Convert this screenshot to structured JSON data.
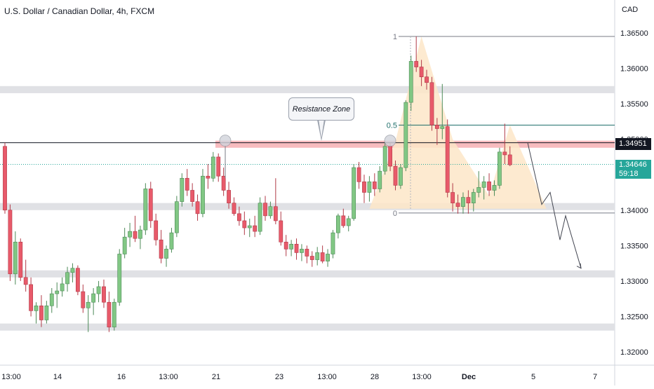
{
  "title": "U.S. Dollar / Canadian Dollar, 4h, FXCM",
  "currency_label": "CAD",
  "colors": {
    "up": "#81c784",
    "down": "#e85a6a",
    "zone_gray": "#e0e1e5",
    "resistance": "#f4a4a8",
    "pattern_fill": "#fde6c8",
    "fib_line": "#1f6f6b",
    "price_green": "#26a69a",
    "price_black": "#131722"
  },
  "price_labels": {
    "last_close_marker": "1.34951",
    "current_price": "1.34646",
    "countdown": "59:18"
  },
  "annotation": "Resistance Zone",
  "fib_labels": [
    "1",
    "0.5",
    "0"
  ],
  "chart_data": {
    "type": "candlestick",
    "title": "U.S. Dollar / Canadian Dollar, 4h, FXCM",
    "y_axis_label": "CAD",
    "ylim": [
      1.3175,
      1.368
    ],
    "y_ticks": [
      "1.36500",
      "1.36000",
      "1.35500",
      "1.35000",
      "1.34500",
      "1.34000",
      "1.33500",
      "1.33000",
      "1.32500",
      "1.32000"
    ],
    "x_ticks": [
      "13:00",
      "14",
      "16",
      "13:00",
      "21",
      "23",
      "13:00",
      "28",
      "13:00",
      "Dec",
      "5",
      "7"
    ],
    "candles": [
      [
        1.349,
        1.3495,
        1.3395,
        1.34
      ],
      [
        1.34,
        1.3408,
        1.33,
        1.331
      ],
      [
        1.331,
        1.337,
        1.3295,
        1.3355
      ],
      [
        1.3355,
        1.336,
        1.33,
        1.3305
      ],
      [
        1.3305,
        1.333,
        1.3285,
        1.3295
      ],
      [
        1.3295,
        1.3305,
        1.325,
        1.3258
      ],
      [
        1.3258,
        1.327,
        1.324,
        1.3265
      ],
      [
        1.3265,
        1.328,
        1.3235,
        1.3245
      ],
      [
        1.3245,
        1.3272,
        1.324,
        1.3265
      ],
      [
        1.3265,
        1.329,
        1.3255,
        1.3282
      ],
      [
        1.3282,
        1.3298,
        1.3262,
        1.3286
      ],
      [
        1.3286,
        1.3305,
        1.3278,
        1.3296
      ],
      [
        1.3296,
        1.332,
        1.3285,
        1.3312
      ],
      [
        1.3312,
        1.3325,
        1.3298,
        1.3318
      ],
      [
        1.3318,
        1.3322,
        1.328,
        1.3285
      ],
      [
        1.3285,
        1.3295,
        1.3255,
        1.3262
      ],
      [
        1.3262,
        1.328,
        1.3228,
        1.327
      ],
      [
        1.327,
        1.329,
        1.3252,
        1.3282
      ],
      [
        1.3282,
        1.33,
        1.327,
        1.3292
      ],
      [
        1.3292,
        1.3302,
        1.3262,
        1.327
      ],
      [
        1.327,
        1.3285,
        1.3228,
        1.3235
      ],
      [
        1.3235,
        1.3275,
        1.323,
        1.327
      ],
      [
        1.327,
        1.3345,
        1.3265,
        1.3338
      ],
      [
        1.3338,
        1.3375,
        1.3332,
        1.3362
      ],
      [
        1.3362,
        1.3382,
        1.3348,
        1.337
      ],
      [
        1.337,
        1.3392,
        1.3355,
        1.336
      ],
      [
        1.336,
        1.3378,
        1.3345,
        1.3372
      ],
      [
        1.3372,
        1.3438,
        1.3365,
        1.343
      ],
      [
        1.343,
        1.344,
        1.3375,
        1.3385
      ],
      [
        1.3385,
        1.3395,
        1.335,
        1.3358
      ],
      [
        1.3358,
        1.3372,
        1.3325,
        1.3332
      ],
      [
        1.3332,
        1.335,
        1.332,
        1.3345
      ],
      [
        1.3345,
        1.3375,
        1.334,
        1.3368
      ],
      [
        1.3368,
        1.342,
        1.3362,
        1.3412
      ],
      [
        1.3412,
        1.3452,
        1.3405,
        1.3445
      ],
      [
        1.3445,
        1.3458,
        1.342,
        1.3428
      ],
      [
        1.3428,
        1.3438,
        1.3405,
        1.3412
      ],
      [
        1.3412,
        1.3422,
        1.3385,
        1.3395
      ],
      [
        1.3395,
        1.3458,
        1.339,
        1.3448
      ],
      [
        1.3448,
        1.3465,
        1.343,
        1.3445
      ],
      [
        1.3445,
        1.3482,
        1.344,
        1.3475
      ],
      [
        1.3475,
        1.348,
        1.344,
        1.3448
      ],
      [
        1.3448,
        1.346,
        1.342,
        1.3428
      ],
      [
        1.3428,
        1.344,
        1.3402,
        1.341
      ],
      [
        1.341,
        1.3418,
        1.3392,
        1.3395
      ],
      [
        1.3395,
        1.3405,
        1.3378,
        1.3385
      ],
      [
        1.3385,
        1.3398,
        1.3365,
        1.3375
      ],
      [
        1.3375,
        1.3388,
        1.3362,
        1.3378
      ],
      [
        1.3378,
        1.3392,
        1.3362,
        1.337
      ],
      [
        1.337,
        1.3418,
        1.3365,
        1.341
      ],
      [
        1.341,
        1.342,
        1.3385,
        1.3392
      ],
      [
        1.3392,
        1.3412,
        1.3388,
        1.3405
      ],
      [
        1.3405,
        1.3445,
        1.338,
        1.3385
      ],
      [
        1.3385,
        1.3398,
        1.335,
        1.3355
      ],
      [
        1.3355,
        1.3365,
        1.3335,
        1.3345
      ],
      [
        1.3345,
        1.3358,
        1.3335,
        1.3352
      ],
      [
        1.3352,
        1.336,
        1.333,
        1.334
      ],
      [
        1.334,
        1.3352,
        1.3328,
        1.3345
      ],
      [
        1.3345,
        1.335,
        1.3325,
        1.3335
      ],
      [
        1.3335,
        1.3342,
        1.332,
        1.333
      ],
      [
        1.333,
        1.3348,
        1.3322,
        1.334
      ],
      [
        1.334,
        1.335,
        1.3325,
        1.3328
      ],
      [
        1.3328,
        1.3345,
        1.332,
        1.3338
      ],
      [
        1.3338,
        1.3372,
        1.3332,
        1.3368
      ],
      [
        1.3368,
        1.3395,
        1.336,
        1.3392
      ],
      [
        1.3392,
        1.3402,
        1.3375,
        1.3378
      ],
      [
        1.3378,
        1.3392,
        1.337,
        1.3388
      ],
      [
        1.3388,
        1.3465,
        1.3385,
        1.346
      ],
      [
        1.346,
        1.3468,
        1.343,
        1.344
      ],
      [
        1.344,
        1.345,
        1.341,
        1.3425
      ],
      [
        1.3425,
        1.3448,
        1.3412,
        1.344
      ],
      [
        1.344,
        1.3452,
        1.342,
        1.343
      ],
      [
        1.343,
        1.3462,
        1.3425,
        1.3455
      ],
      [
        1.3455,
        1.3495,
        1.345,
        1.349
      ],
      [
        1.349,
        1.3495,
        1.3455,
        1.3462
      ],
      [
        1.3462,
        1.347,
        1.3428,
        1.3435
      ],
      [
        1.3435,
        1.3465,
        1.343,
        1.346
      ],
      [
        1.346,
        1.3555,
        1.3455,
        1.3552
      ],
      [
        1.3552,
        1.3618,
        1.354,
        1.361
      ],
      [
        1.361,
        1.3645,
        1.3595,
        1.3602
      ],
      [
        1.3602,
        1.3612,
        1.3575,
        1.3588
      ],
      [
        1.3588,
        1.3598,
        1.357,
        1.358
      ],
      [
        1.358,
        1.3588,
        1.3512,
        1.352
      ],
      [
        1.352,
        1.353,
        1.3492,
        1.3515
      ],
      [
        1.3515,
        1.3578,
        1.35,
        1.3518
      ],
      [
        1.3518,
        1.3528,
        1.3418,
        1.3425
      ],
      [
        1.3425,
        1.3438,
        1.3398,
        1.341
      ],
      [
        1.341,
        1.3422,
        1.3395,
        1.3405
      ],
      [
        1.3405,
        1.3425,
        1.3395,
        1.3418
      ],
      [
        1.3418,
        1.3428,
        1.3395,
        1.341
      ],
      [
        1.341,
        1.343,
        1.3398,
        1.3425
      ],
      [
        1.3425,
        1.3455,
        1.3418,
        1.3432
      ],
      [
        1.3432,
        1.3448,
        1.3415,
        1.344
      ],
      [
        1.344,
        1.3452,
        1.342,
        1.3428
      ],
      [
        1.3428,
        1.3442,
        1.342,
        1.3435
      ],
      [
        1.3435,
        1.3488,
        1.343,
        1.3482
      ],
      [
        1.3482,
        1.3522,
        1.3465,
        1.3478
      ],
      [
        1.3478,
        1.349,
        1.3462,
        1.3464
      ]
    ],
    "horizontal_zones": [
      {
        "label": "gray",
        "range": [
          1.3565,
          1.3575
        ]
      },
      {
        "label": "resistance",
        "range": [
          1.3488,
          1.3498
        ]
      },
      {
        "label": "gray",
        "range": [
          1.34,
          1.341
        ]
      },
      {
        "label": "gray",
        "range": [
          1.3305,
          1.3315
        ]
      },
      {
        "label": "gray",
        "range": [
          1.323,
          1.324
        ]
      }
    ],
    "fib_levels": [
      {
        "label": "1",
        "value": 1.3645
      },
      {
        "label": "0.5",
        "value": 1.352
      },
      {
        "label": "0",
        "value": 1.3396
      }
    ],
    "reference_lines": {
      "last_close": 1.34951,
      "current": 1.34646
    },
    "projection_path": [
      [
        1.3498,
        0
      ],
      [
        1.341,
        0
      ],
      [
        1.343,
        0
      ],
      [
        1.336,
        0
      ],
      [
        1.3395,
        0
      ],
      [
        1.3315,
        0
      ]
    ]
  }
}
